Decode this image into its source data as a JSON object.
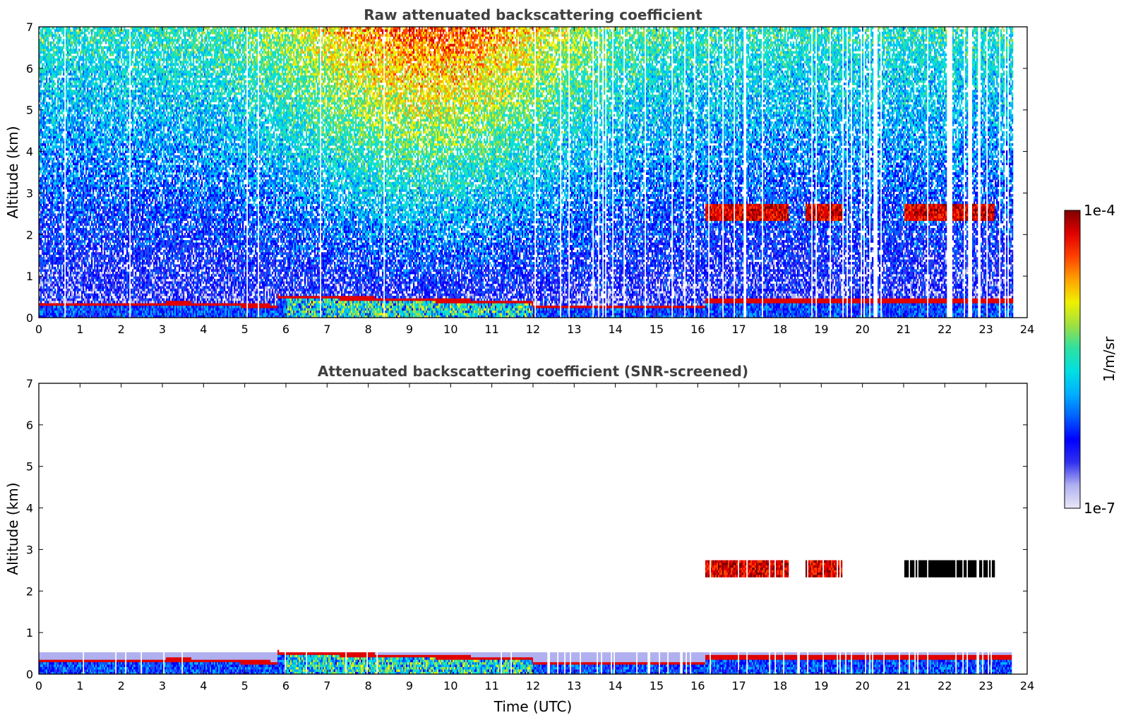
{
  "chart_data": [
    {
      "type": "heatmap",
      "title": "Raw attenuated backscattering coefficient",
      "xlabel": "",
      "ylabel": "Altitude (km)",
      "xlim": [
        0,
        24
      ],
      "ylim": [
        0,
        7
      ],
      "xticks": [
        "0",
        "1",
        "2",
        "3",
        "4",
        "5",
        "6",
        "7",
        "8",
        "9",
        "10",
        "11",
        "12",
        "13",
        "14",
        "15",
        "16",
        "17",
        "18",
        "19",
        "20",
        "21",
        "22",
        "23",
        "24"
      ],
      "yticks": [
        "0",
        "1",
        "2",
        "3",
        "4",
        "5",
        "6",
        "7"
      ],
      "features": [
        {
          "name": "boundary-layer-top",
          "t_start": 6.0,
          "t_end": 12.0,
          "alt_start": 0.55,
          "alt_end": 0.4
        },
        {
          "name": "cloud-layer-a",
          "t_start": 16.2,
          "t_end": 18.2,
          "alt": 2.55
        },
        {
          "name": "cloud-layer-b",
          "t_start": 18.6,
          "t_end": 19.5,
          "alt": 2.45
        },
        {
          "name": "cloud-layer-c",
          "t_start": 21.0,
          "t_end": 23.2,
          "alt": 2.5
        }
      ]
    },
    {
      "type": "heatmap",
      "title": "Attenuated backscattering coefficient (SNR-screened)",
      "xlabel": "Time (UTC)",
      "ylabel": "Altitude (km)",
      "xlim": [
        0,
        24
      ],
      "ylim": [
        0,
        7
      ],
      "xticks": [
        "0",
        "1",
        "2",
        "3",
        "4",
        "5",
        "6",
        "7",
        "8",
        "9",
        "10",
        "11",
        "12",
        "13",
        "14",
        "15",
        "16",
        "17",
        "18",
        "19",
        "20",
        "21",
        "22",
        "23",
        "24"
      ],
      "yticks": [
        "0",
        "1",
        "2",
        "3",
        "4",
        "5",
        "6",
        "7"
      ]
    }
  ],
  "colorbar": {
    "label": "1/m/sr",
    "min_label": "1e-7",
    "max_label": "1e-4",
    "colors": [
      "#e8e8f8",
      "#b0b0f0",
      "#3030f0",
      "#0000ff",
      "#0060ff",
      "#00b0ff",
      "#00e0e0",
      "#30e0a0",
      "#a0e040",
      "#f0f000",
      "#ffa000",
      "#ff4000",
      "#e00000",
      "#800000"
    ]
  }
}
